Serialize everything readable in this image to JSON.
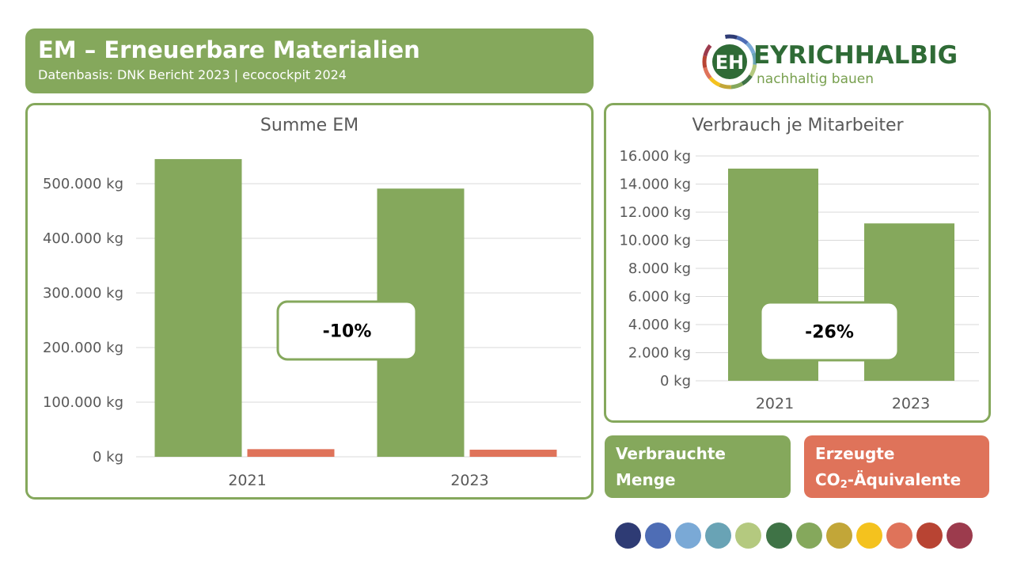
{
  "header": {
    "title": "EM – Erneuerbare Materialien",
    "subtitle": "Datenbasis: DNK Bericht 2023 | ecocockpit 2024"
  },
  "logo": {
    "wordmark": "EYRICHHALBIG",
    "tagline": "nachhaltig bauen",
    "initials": "EH",
    "ring_colors": [
      "#2e3b74",
      "#4e6db5",
      "#7aa9d6",
      "#69a3b5",
      "#b4c97f",
      "#3f7346",
      "#85a85c",
      "#c2a638",
      "#f4c21e",
      "#df735a",
      "#b84433",
      "#9c3b4d"
    ]
  },
  "colors": {
    "green": "#85a85c",
    "red": "#df735a",
    "grid": "#d9d9d9",
    "axis_text": "#595959"
  },
  "chart_data": [
    {
      "type": "bar",
      "title": "Summe EM",
      "categories": [
        "2021",
        "2023"
      ],
      "series": [
        {
          "color": "#85a85c",
          "values": [
            545000,
            491000
          ]
        },
        {
          "color": "#df735a",
          "values": [
            14000,
            13000
          ]
        }
      ],
      "ylim": [
        0,
        500000
      ],
      "yticks": [
        0,
        100000,
        200000,
        300000,
        400000,
        500000
      ],
      "ytick_labels": [
        "0 kg",
        "100.000 kg",
        "200.000 kg",
        "300.000 kg",
        "400.000 kg",
        "500.000 kg"
      ],
      "grid": true,
      "annotation": "-10%"
    },
    {
      "type": "bar",
      "title": "Verbrauch je Mitarbeiter",
      "categories": [
        "2021",
        "2023"
      ],
      "series": [
        {
          "color": "#85a85c",
          "values": [
            15100,
            11200
          ]
        }
      ],
      "ylim": [
        0,
        16000
      ],
      "yticks": [
        0,
        2000,
        4000,
        6000,
        8000,
        10000,
        12000,
        14000,
        16000
      ],
      "ytick_labels": [
        "0 kg",
        "2.000 kg",
        "4.000 kg",
        "6.000 kg",
        "8.000 kg",
        "10.000 kg",
        "12.000 kg",
        "14.000 kg",
        "16.000 kg"
      ],
      "grid": true,
      "annotation": "-26%"
    }
  ],
  "legend": {
    "green_line1": "Verbrauchte",
    "green_line2": "Menge",
    "red_line1": "Erzeugte",
    "red_line2_pre": "CO",
    "red_line2_sub": "2",
    "red_line2_post": "-Äquivalente"
  },
  "palette": [
    "#2e3b74",
    "#4e6db5",
    "#7aa9d6",
    "#69a3b5",
    "#b4c97f",
    "#3f7346",
    "#85a85c",
    "#c2a638",
    "#f4c21e",
    "#df735a",
    "#b84433",
    "#9c3b4d"
  ]
}
